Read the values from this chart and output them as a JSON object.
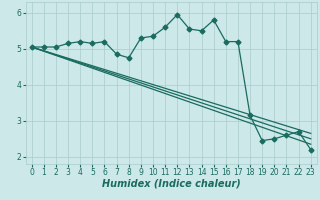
{
  "bg_color": "#cce8e8",
  "grid_color": "#aacccc",
  "line_color": "#1a6b60",
  "xlabel": "Humidex (Indice chaleur)",
  "xlim": [
    -0.5,
    23.5
  ],
  "ylim": [
    1.8,
    6.3
  ],
  "yticks": [
    2,
    3,
    4,
    5,
    6
  ],
  "xticks": [
    0,
    1,
    2,
    3,
    4,
    5,
    6,
    7,
    8,
    9,
    10,
    11,
    12,
    13,
    14,
    15,
    16,
    17,
    18,
    19,
    20,
    21,
    22,
    23
  ],
  "series1_x": [
    0,
    1,
    2,
    3,
    4,
    5,
    6,
    7,
    8,
    9,
    10,
    11,
    12,
    13,
    14,
    15,
    16,
    17,
    18,
    19,
    20,
    21,
    22,
    23
  ],
  "series1_y": [
    5.05,
    5.05,
    5.05,
    5.15,
    5.2,
    5.15,
    5.2,
    4.85,
    4.75,
    5.3,
    5.35,
    5.6,
    5.95,
    5.55,
    5.5,
    5.8,
    5.2,
    5.2,
    3.15,
    2.45,
    2.5,
    2.6,
    2.7,
    2.2
  ],
  "series2_x": [
    0,
    23
  ],
  "series2_y": [
    5.05,
    2.65
  ],
  "series3_x": [
    0,
    23
  ],
  "series3_y": [
    5.05,
    2.5
  ],
  "series4_x": [
    0,
    23
  ],
  "series4_y": [
    5.05,
    2.35
  ],
  "marker": "D",
  "markersize": 2.5,
  "linewidth": 0.9,
  "xlabel_fontsize": 7,
  "tick_fontsize": 5.5
}
